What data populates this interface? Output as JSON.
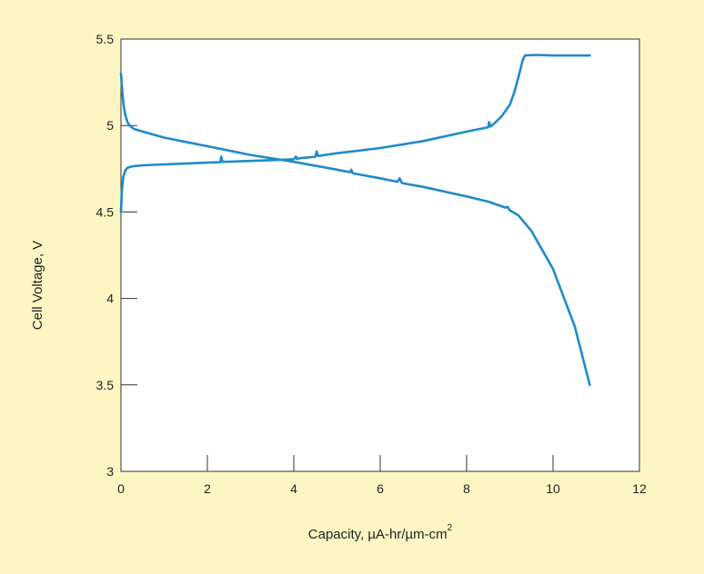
{
  "chart_data": {
    "type": "line",
    "title": "",
    "xlabel": "Capacity, µA-hr/µm-cm",
    "xlabel_superscript": "2",
    "ylabel": "Cell Voltage, V",
    "xlim": [
      0,
      12
    ],
    "ylim": [
      3,
      5.5
    ],
    "x_ticks": [
      0,
      2,
      4,
      6,
      8,
      10,
      12
    ],
    "x_tick_labels": [
      "0",
      "2",
      "4",
      "6",
      "8",
      "10",
      "12"
    ],
    "y_ticks": [
      3,
      3.5,
      4,
      4.5,
      5,
      5.5
    ],
    "y_tick_labels": [
      "3",
      "3.5",
      "4",
      "4.5",
      "5",
      "5.5"
    ],
    "grid": false,
    "legend": "none",
    "colors": {
      "line": "#1f8ac9",
      "background": "#fdf6c3",
      "plot_area": "#ffffff"
    },
    "series": [
      {
        "values_x": [
          0.0,
          0.02,
          0.05,
          0.1,
          0.15,
          0.2,
          0.3,
          0.5,
          1.0,
          1.5,
          2.0,
          2.3,
          2.32,
          2.35,
          2.38,
          3.0,
          3.5,
          4.0,
          4.05,
          4.08,
          4.1,
          4.5,
          4.53,
          4.56,
          4.6,
          5.0,
          6.0,
          7.0,
          8.0,
          8.5,
          8.52,
          8.55,
          8.58,
          8.8,
          9.0,
          9.1,
          9.2,
          9.3,
          9.35,
          9.6,
          10.0,
          10.5,
          10.85
        ],
        "values_y": [
          4.5,
          4.62,
          4.7,
          4.74,
          4.755,
          4.76,
          4.765,
          4.77,
          4.775,
          4.78,
          4.785,
          4.788,
          4.82,
          4.79,
          4.79,
          4.795,
          4.8,
          4.805,
          4.82,
          4.806,
          4.81,
          4.82,
          4.85,
          4.824,
          4.825,
          4.84,
          4.87,
          4.91,
          4.965,
          4.99,
          5.02,
          4.995,
          4.998,
          5.05,
          5.12,
          5.19,
          5.28,
          5.38,
          5.405,
          5.408,
          5.405,
          5.405,
          5.405
        ]
      },
      {
        "values_x": [
          0.0,
          0.03,
          0.06,
          0.1,
          0.15,
          0.2,
          0.3,
          0.5,
          1.0,
          1.5,
          2.0,
          3.0,
          4.0,
          5.0,
          5.3,
          5.33,
          5.36,
          5.4,
          6.0,
          6.4,
          6.45,
          6.5,
          6.55,
          7.0,
          8.0,
          8.5,
          8.9,
          8.95,
          8.98,
          9.0,
          9.2,
          9.5,
          10.0,
          10.5,
          10.85
        ],
        "values_y": [
          5.3,
          5.2,
          5.12,
          5.06,
          5.02,
          5.0,
          4.98,
          4.965,
          4.93,
          4.905,
          4.88,
          4.83,
          4.79,
          4.745,
          4.73,
          4.745,
          4.725,
          4.722,
          4.695,
          4.675,
          4.695,
          4.668,
          4.665,
          4.645,
          4.59,
          4.56,
          4.525,
          4.53,
          4.515,
          4.51,
          4.48,
          4.39,
          4.17,
          3.84,
          3.5
        ]
      }
    ]
  }
}
